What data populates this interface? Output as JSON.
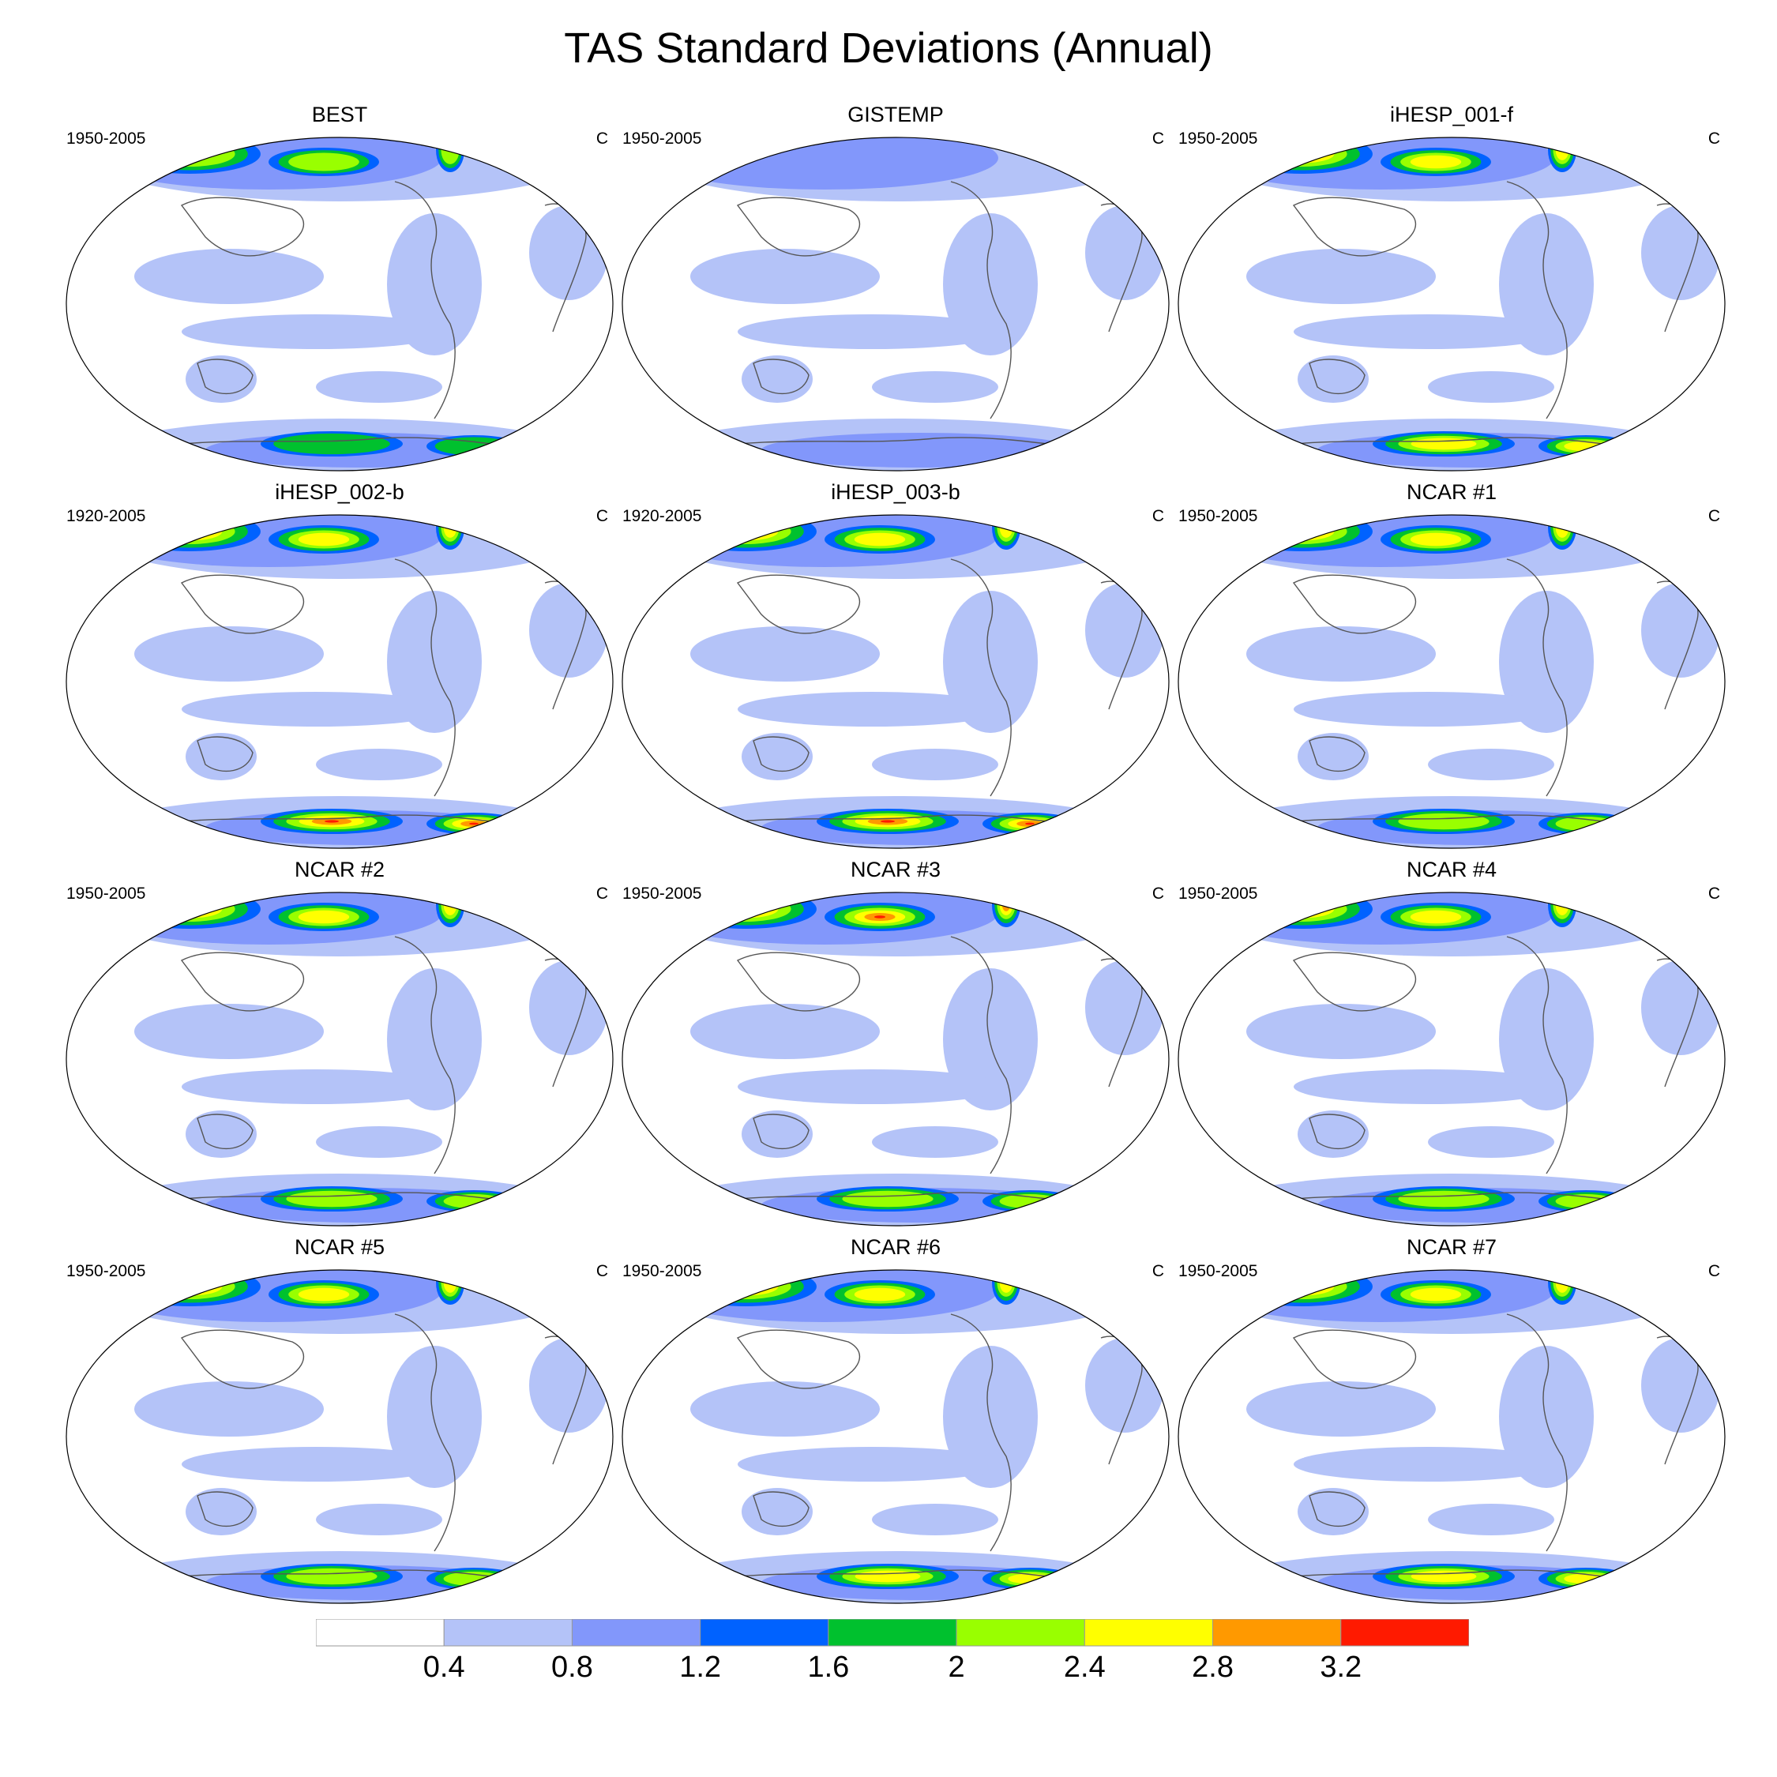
{
  "title": "TAS Standard Deviations (Annual)",
  "unit": "C",
  "panels": [
    {
      "name": "BEST",
      "years": "1950-2005",
      "north_max": 2.2,
      "south_max": 1.6
    },
    {
      "name": "GISTEMP",
      "years": "1950-2005",
      "north_max": 1.2,
      "south_max": 1.2
    },
    {
      "name": "iHESP_001-f",
      "years": "1950-2005",
      "north_max": 2.8,
      "south_max": 2.8
    },
    {
      "name": "iHESP_002-b",
      "years": "1920-2005",
      "north_max": 2.8,
      "south_max": 3.4
    },
    {
      "name": "iHESP_003-b",
      "years": "1920-2005",
      "north_max": 2.8,
      "south_max": 3.4
    },
    {
      "name": "NCAR #1",
      "years": "1950-2005",
      "north_max": 2.8,
      "south_max": 2.4
    },
    {
      "name": "NCAR #2",
      "years": "1950-2005",
      "north_max": 2.8,
      "south_max": 2.4
    },
    {
      "name": "NCAR #3",
      "years": "1950-2005",
      "north_max": 3.2,
      "south_max": 2.4
    },
    {
      "name": "NCAR #4",
      "years": "1950-2005",
      "north_max": 2.8,
      "south_max": 2.4
    },
    {
      "name": "NCAR #5",
      "years": "1950-2005",
      "north_max": 2.8,
      "south_max": 2.4
    },
    {
      "name": "NCAR #6",
      "years": "1950-2005",
      "north_max": 2.8,
      "south_max": 2.8
    },
    {
      "name": "NCAR #7",
      "years": "1950-2005",
      "north_max": 2.8,
      "south_max": 2.8
    }
  ],
  "colorbar": {
    "colors": [
      "#ffffff",
      "#b4c3f8",
      "#8297fb",
      "#0062ff",
      "#00c12e",
      "#99ff00",
      "#ffff00",
      "#ff9900",
      "#ff1a00"
    ],
    "ticks": [
      "0.4",
      "0.8",
      "1.2",
      "1.6",
      "2",
      "2.4",
      "2.8",
      "3.2"
    ]
  }
}
